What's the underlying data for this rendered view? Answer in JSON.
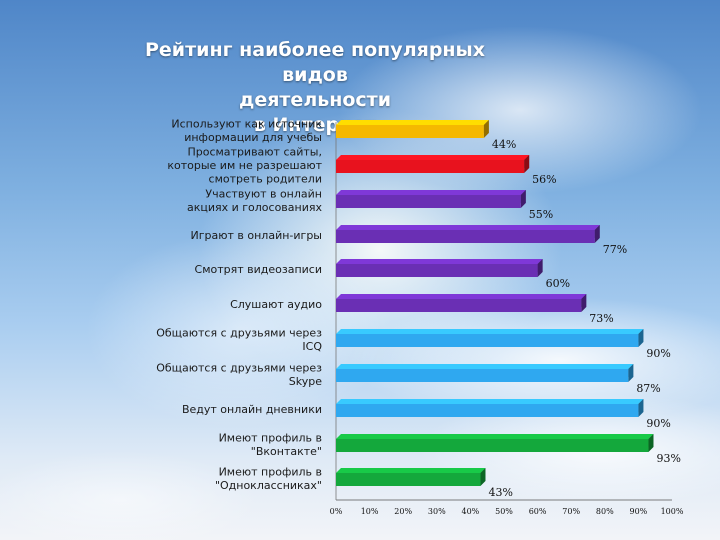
{
  "title_lines": [
    "Рейтинг наиболее популярных видов",
    "деятельности",
    "в Интернет"
  ],
  "chart_data": {
    "type": "bar",
    "orientation": "horizontal",
    "title": "Рейтинг наиболее популярных видов деятельности в Интернет",
    "categories": [
      [
        "Используют как источник",
        "информации для учебы"
      ],
      [
        "Просматривают сайты,",
        "которые им не разрешают",
        "смотреть родители"
      ],
      [
        "Участвуют в онлайн",
        "акциях и голосованиях"
      ],
      [
        "Играют в онлайн-игры"
      ],
      [
        "Смотрят видеозаписи"
      ],
      [
        "Слушают аудио"
      ],
      [
        "Общаются с друзьями через",
        "ICQ"
      ],
      [
        "Общаются с друзьями через",
        "Skype"
      ],
      [
        "Ведут онлайн дневники"
      ],
      [
        "Имеют профиль в",
        "\"Вконтакте\""
      ],
      [
        "Имеют профиль в",
        "\"Одноклассниках\""
      ]
    ],
    "values": [
      44,
      56,
      55,
      77,
      60,
      73,
      90,
      87,
      90,
      93,
      43
    ],
    "value_labels": [
      "44%",
      "56%",
      "55%",
      "77%",
      "60%",
      "73%",
      "90%",
      "87%",
      "90%",
      "93%",
      "43%"
    ],
    "colors": [
      "#f5b800",
      "#e8121e",
      "#6a2fb4",
      "#6a2fb4",
      "#6a2fb4",
      "#6a2fb4",
      "#2fa8f0",
      "#2fa8f0",
      "#2fa8f0",
      "#14a83c",
      "#14a83c"
    ],
    "x_ticks": [
      "0%",
      "10%",
      "20%",
      "30%",
      "40%",
      "50%",
      "60%",
      "70%",
      "80%",
      "90%",
      "100%"
    ],
    "xlim": [
      0,
      100
    ],
    "grid": false,
    "legend": "none"
  }
}
